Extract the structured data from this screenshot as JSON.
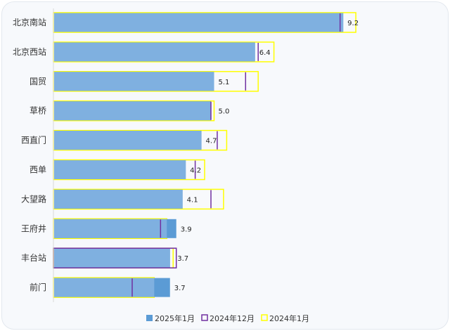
{
  "chart_data": {
    "type": "bar",
    "orientation": "horizontal",
    "categories": [
      "北京南站",
      "北京西站",
      "国贸",
      "草桥",
      "西直门",
      "西单",
      "大望路",
      "王府井",
      "丰台站",
      "前门"
    ],
    "series": [
      {
        "name": "2025年1月",
        "values": [
          9.2,
          6.4,
          5.1,
          5.0,
          4.7,
          4.2,
          4.1,
          3.9,
          3.7,
          3.7
        ],
        "color": "#5b9bd5"
      },
      {
        "name": "2024年12月",
        "values": [
          9.1,
          6.5,
          6.1,
          5.0,
          5.2,
          4.5,
          5.0,
          3.4,
          3.9,
          2.5
        ],
        "color": "#7030a0"
      },
      {
        "name": "2024年1月",
        "values": [
          9.6,
          7.0,
          6.5,
          5.1,
          5.5,
          4.8,
          5.4,
          3.6,
          3.8,
          3.2
        ],
        "color": "#ffff00"
      }
    ],
    "data_labels": [
      "9.2",
      "6.4",
      "5.1",
      "5.0",
      "4.7",
      "4.2",
      "4.1",
      "3.9",
      "3.7",
      "3.7"
    ],
    "xlim": [
      0,
      10
    ],
    "grid": false,
    "legend_position": "bottom"
  }
}
